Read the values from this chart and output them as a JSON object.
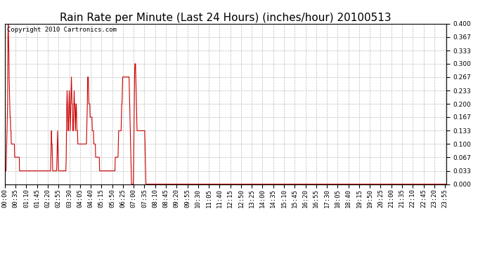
{
  "title": "Rain Rate per Minute (Last 24 Hours) (inches/hour) 20100513",
  "copyright_text": "Copyright 2010 Cartronics.com",
  "line_color": "#cc0000",
  "bg_color": "#ffffff",
  "grid_color": "#bbbbbb",
  "ylim": [
    0.0,
    0.4
  ],
  "yticks": [
    0.0,
    0.033,
    0.067,
    0.1,
    0.133,
    0.167,
    0.2,
    0.233,
    0.267,
    0.3,
    0.333,
    0.367,
    0.4
  ],
  "title_fontsize": 11,
  "tick_fontsize": 6.5,
  "minutes_per_day": 1440,
  "tick_interval": 35,
  "data_sparse": [
    [
      0,
      0.033
    ],
    [
      1,
      0.033
    ],
    [
      2,
      0.033
    ],
    [
      3,
      0.033
    ],
    [
      4,
      0.033
    ],
    [
      5,
      0.067
    ],
    [
      6,
      0.1
    ],
    [
      7,
      0.133
    ],
    [
      8,
      0.167
    ],
    [
      9,
      0.2
    ],
    [
      10,
      0.367
    ],
    [
      11,
      0.4
    ],
    [
      12,
      0.367
    ],
    [
      13,
      0.333
    ],
    [
      14,
      0.267
    ],
    [
      15,
      0.233
    ],
    [
      16,
      0.2
    ],
    [
      17,
      0.167
    ],
    [
      18,
      0.167
    ],
    [
      19,
      0.133
    ],
    [
      20,
      0.133
    ],
    [
      21,
      0.1
    ],
    [
      22,
      0.1
    ],
    [
      23,
      0.1
    ],
    [
      24,
      0.1
    ],
    [
      25,
      0.1
    ],
    [
      26,
      0.1
    ],
    [
      27,
      0.1
    ],
    [
      28,
      0.1
    ],
    [
      29,
      0.1
    ],
    [
      30,
      0.1
    ],
    [
      31,
      0.1
    ],
    [
      32,
      0.067
    ],
    [
      33,
      0.067
    ],
    [
      34,
      0.067
    ],
    [
      35,
      0.067
    ],
    [
      36,
      0.067
    ],
    [
      37,
      0.067
    ],
    [
      38,
      0.067
    ],
    [
      39,
      0.067
    ],
    [
      40,
      0.067
    ],
    [
      41,
      0.067
    ],
    [
      42,
      0.067
    ],
    [
      43,
      0.067
    ],
    [
      44,
      0.067
    ],
    [
      45,
      0.067
    ],
    [
      46,
      0.067
    ],
    [
      47,
      0.067
    ],
    [
      48,
      0.033
    ],
    [
      49,
      0.033
    ],
    [
      50,
      0.033
    ],
    [
      51,
      0.033
    ],
    [
      52,
      0.033
    ],
    [
      53,
      0.033
    ],
    [
      54,
      0.033
    ],
    [
      55,
      0.033
    ],
    [
      56,
      0.033
    ],
    [
      57,
      0.033
    ],
    [
      58,
      0.033
    ],
    [
      59,
      0.033
    ],
    [
      60,
      0.033
    ],
    [
      61,
      0.033
    ],
    [
      62,
      0.033
    ],
    [
      63,
      0.033
    ],
    [
      64,
      0.033
    ],
    [
      65,
      0.033
    ],
    [
      66,
      0.033
    ],
    [
      67,
      0.033
    ],
    [
      68,
      0.033
    ],
    [
      69,
      0.033
    ],
    [
      70,
      0.033
    ],
    [
      71,
      0.033
    ],
    [
      72,
      0.033
    ],
    [
      73,
      0.033
    ],
    [
      74,
      0.033
    ],
    [
      75,
      0.033
    ],
    [
      76,
      0.033
    ],
    [
      77,
      0.033
    ],
    [
      78,
      0.033
    ],
    [
      79,
      0.033
    ],
    [
      80,
      0.033
    ],
    [
      81,
      0.033
    ],
    [
      82,
      0.033
    ],
    [
      83,
      0.033
    ],
    [
      84,
      0.033
    ],
    [
      85,
      0.033
    ],
    [
      86,
      0.033
    ],
    [
      87,
      0.033
    ],
    [
      88,
      0.033
    ],
    [
      89,
      0.033
    ],
    [
      90,
      0.033
    ],
    [
      91,
      0.033
    ],
    [
      92,
      0.033
    ],
    [
      93,
      0.033
    ],
    [
      94,
      0.033
    ],
    [
      95,
      0.033
    ],
    [
      96,
      0.033
    ],
    [
      97,
      0.033
    ],
    [
      98,
      0.033
    ],
    [
      99,
      0.033
    ],
    [
      100,
      0.033
    ],
    [
      101,
      0.033
    ],
    [
      102,
      0.033
    ],
    [
      103,
      0.033
    ],
    [
      104,
      0.033
    ],
    [
      105,
      0.033
    ],
    [
      106,
      0.033
    ],
    [
      107,
      0.033
    ],
    [
      108,
      0.033
    ],
    [
      109,
      0.033
    ],
    [
      110,
      0.033
    ],
    [
      111,
      0.033
    ],
    [
      112,
      0.033
    ],
    [
      113,
      0.033
    ],
    [
      114,
      0.033
    ],
    [
      115,
      0.033
    ],
    [
      116,
      0.033
    ],
    [
      117,
      0.033
    ],
    [
      118,
      0.033
    ],
    [
      119,
      0.033
    ],
    [
      120,
      0.033
    ],
    [
      121,
      0.033
    ],
    [
      122,
      0.033
    ],
    [
      123,
      0.033
    ],
    [
      124,
      0.033
    ],
    [
      125,
      0.033
    ],
    [
      126,
      0.033
    ],
    [
      127,
      0.033
    ],
    [
      128,
      0.033
    ],
    [
      129,
      0.033
    ],
    [
      130,
      0.033
    ],
    [
      131,
      0.033
    ],
    [
      132,
      0.033
    ],
    [
      133,
      0.033
    ],
    [
      134,
      0.033
    ],
    [
      135,
      0.033
    ],
    [
      136,
      0.033
    ],
    [
      137,
      0.033
    ],
    [
      138,
      0.033
    ],
    [
      139,
      0.033
    ],
    [
      140,
      0.033
    ],
    [
      141,
      0.033
    ],
    [
      142,
      0.033
    ],
    [
      143,
      0.033
    ],
    [
      144,
      0.033
    ],
    [
      145,
      0.033
    ],
    [
      146,
      0.033
    ],
    [
      147,
      0.033
    ],
    [
      148,
      0.033
    ],
    [
      149,
      0.033
    ],
    [
      150,
      0.067
    ],
    [
      151,
      0.1
    ],
    [
      152,
      0.133
    ],
    [
      153,
      0.1
    ],
    [
      154,
      0.1
    ],
    [
      155,
      0.067
    ],
    [
      156,
      0.033
    ],
    [
      157,
      0.033
    ],
    [
      158,
      0.033
    ],
    [
      159,
      0.033
    ],
    [
      160,
      0.033
    ],
    [
      161,
      0.033
    ],
    [
      162,
      0.033
    ],
    [
      163,
      0.033
    ],
    [
      164,
      0.033
    ],
    [
      165,
      0.033
    ],
    [
      166,
      0.033
    ],
    [
      167,
      0.033
    ],
    [
      168,
      0.033
    ],
    [
      169,
      0.033
    ],
    [
      170,
      0.067
    ],
    [
      171,
      0.1
    ],
    [
      172,
      0.133
    ],
    [
      173,
      0.1
    ],
    [
      174,
      0.067
    ],
    [
      175,
      0.033
    ],
    [
      176,
      0.033
    ],
    [
      177,
      0.033
    ],
    [
      178,
      0.033
    ],
    [
      179,
      0.033
    ],
    [
      180,
      0.033
    ],
    [
      181,
      0.033
    ],
    [
      182,
      0.033
    ],
    [
      183,
      0.033
    ],
    [
      184,
      0.033
    ],
    [
      185,
      0.033
    ],
    [
      186,
      0.033
    ],
    [
      187,
      0.033
    ],
    [
      188,
      0.033
    ],
    [
      189,
      0.033
    ],
    [
      190,
      0.033
    ],
    [
      191,
      0.033
    ],
    [
      192,
      0.033
    ],
    [
      193,
      0.033
    ],
    [
      194,
      0.033
    ],
    [
      195,
      0.033
    ],
    [
      196,
      0.033
    ],
    [
      197,
      0.033
    ],
    [
      198,
      0.033
    ],
    [
      199,
      0.033
    ],
    [
      200,
      0.067
    ],
    [
      201,
      0.133
    ],
    [
      202,
      0.2
    ],
    [
      203,
      0.233
    ],
    [
      204,
      0.2
    ],
    [
      205,
      0.167
    ],
    [
      206,
      0.133
    ],
    [
      207,
      0.133
    ],
    [
      208,
      0.167
    ],
    [
      209,
      0.2
    ],
    [
      210,
      0.233
    ],
    [
      211,
      0.2
    ],
    [
      212,
      0.167
    ],
    [
      213,
      0.133
    ],
    [
      214,
      0.167
    ],
    [
      215,
      0.2
    ],
    [
      216,
      0.233
    ],
    [
      217,
      0.267
    ],
    [
      218,
      0.233
    ],
    [
      219,
      0.2
    ],
    [
      220,
      0.2
    ],
    [
      221,
      0.167
    ],
    [
      222,
      0.133
    ],
    [
      223,
      0.133
    ],
    [
      224,
      0.167
    ],
    [
      225,
      0.2
    ],
    [
      226,
      0.233
    ],
    [
      227,
      0.2
    ],
    [
      228,
      0.2
    ],
    [
      229,
      0.167
    ],
    [
      230,
      0.133
    ],
    [
      231,
      0.167
    ],
    [
      232,
      0.2
    ],
    [
      233,
      0.2
    ],
    [
      234,
      0.167
    ],
    [
      235,
      0.133
    ],
    [
      236,
      0.133
    ],
    [
      237,
      0.133
    ],
    [
      238,
      0.1
    ],
    [
      239,
      0.1
    ],
    [
      240,
      0.1
    ],
    [
      241,
      0.1
    ],
    [
      242,
      0.1
    ],
    [
      243,
      0.1
    ],
    [
      244,
      0.1
    ],
    [
      245,
      0.1
    ],
    [
      246,
      0.1
    ],
    [
      247,
      0.1
    ],
    [
      248,
      0.1
    ],
    [
      249,
      0.1
    ],
    [
      250,
      0.1
    ],
    [
      251,
      0.1
    ],
    [
      252,
      0.1
    ],
    [
      253,
      0.1
    ],
    [
      254,
      0.1
    ],
    [
      255,
      0.1
    ],
    [
      256,
      0.1
    ],
    [
      257,
      0.1
    ],
    [
      258,
      0.1
    ],
    [
      259,
      0.1
    ],
    [
      260,
      0.1
    ],
    [
      261,
      0.1
    ],
    [
      262,
      0.1
    ],
    [
      263,
      0.1
    ],
    [
      264,
      0.1
    ],
    [
      265,
      0.1
    ],
    [
      266,
      0.1
    ],
    [
      267,
      0.133
    ],
    [
      268,
      0.167
    ],
    [
      269,
      0.2
    ],
    [
      270,
      0.267
    ],
    [
      271,
      0.267
    ],
    [
      272,
      0.267
    ],
    [
      273,
      0.233
    ],
    [
      274,
      0.2
    ],
    [
      275,
      0.2
    ],
    [
      276,
      0.2
    ],
    [
      277,
      0.2
    ],
    [
      278,
      0.167
    ],
    [
      279,
      0.167
    ],
    [
      280,
      0.167
    ],
    [
      281,
      0.167
    ],
    [
      282,
      0.167
    ],
    [
      283,
      0.167
    ],
    [
      284,
      0.167
    ],
    [
      285,
      0.133
    ],
    [
      286,
      0.133
    ],
    [
      287,
      0.133
    ],
    [
      288,
      0.133
    ],
    [
      289,
      0.133
    ],
    [
      290,
      0.1
    ],
    [
      291,
      0.1
    ],
    [
      292,
      0.1
    ],
    [
      293,
      0.1
    ],
    [
      294,
      0.1
    ],
    [
      295,
      0.1
    ],
    [
      296,
      0.067
    ],
    [
      297,
      0.067
    ],
    [
      298,
      0.067
    ],
    [
      299,
      0.067
    ],
    [
      300,
      0.067
    ],
    [
      301,
      0.067
    ],
    [
      302,
      0.067
    ],
    [
      303,
      0.067
    ],
    [
      304,
      0.067
    ],
    [
      305,
      0.067
    ],
    [
      306,
      0.067
    ],
    [
      307,
      0.067
    ],
    [
      308,
      0.067
    ],
    [
      309,
      0.033
    ],
    [
      310,
      0.033
    ],
    [
      311,
      0.033
    ],
    [
      312,
      0.033
    ],
    [
      313,
      0.033
    ],
    [
      314,
      0.033
    ],
    [
      315,
      0.033
    ],
    [
      316,
      0.033
    ],
    [
      317,
      0.033
    ],
    [
      318,
      0.033
    ],
    [
      319,
      0.033
    ],
    [
      320,
      0.033
    ],
    [
      321,
      0.033
    ],
    [
      322,
      0.033
    ],
    [
      323,
      0.033
    ],
    [
      324,
      0.033
    ],
    [
      325,
      0.033
    ],
    [
      326,
      0.033
    ],
    [
      327,
      0.033
    ],
    [
      328,
      0.033
    ],
    [
      329,
      0.033
    ],
    [
      330,
      0.033
    ],
    [
      331,
      0.033
    ],
    [
      332,
      0.033
    ],
    [
      333,
      0.033
    ],
    [
      334,
      0.033
    ],
    [
      335,
      0.033
    ],
    [
      336,
      0.033
    ],
    [
      337,
      0.033
    ],
    [
      338,
      0.033
    ],
    [
      339,
      0.033
    ],
    [
      340,
      0.033
    ],
    [
      341,
      0.033
    ],
    [
      342,
      0.033
    ],
    [
      343,
      0.033
    ],
    [
      344,
      0.033
    ],
    [
      345,
      0.033
    ],
    [
      346,
      0.033
    ],
    [
      347,
      0.033
    ],
    [
      348,
      0.033
    ],
    [
      349,
      0.033
    ],
    [
      350,
      0.033
    ],
    [
      351,
      0.033
    ],
    [
      352,
      0.033
    ],
    [
      353,
      0.033
    ],
    [
      354,
      0.033
    ],
    [
      355,
      0.033
    ],
    [
      356,
      0.033
    ],
    [
      357,
      0.033
    ],
    [
      358,
      0.033
    ],
    [
      359,
      0.033
    ],
    [
      360,
      0.067
    ],
    [
      361,
      0.067
    ],
    [
      362,
      0.067
    ],
    [
      363,
      0.067
    ],
    [
      364,
      0.067
    ],
    [
      365,
      0.067
    ],
    [
      366,
      0.067
    ],
    [
      367,
      0.067
    ],
    [
      368,
      0.067
    ],
    [
      369,
      0.067
    ],
    [
      370,
      0.1
    ],
    [
      371,
      0.133
    ],
    [
      372,
      0.133
    ],
    [
      373,
      0.133
    ],
    [
      374,
      0.133
    ],
    [
      375,
      0.133
    ],
    [
      376,
      0.133
    ],
    [
      377,
      0.133
    ],
    [
      378,
      0.133
    ],
    [
      379,
      0.133
    ],
    [
      380,
      0.167
    ],
    [
      381,
      0.2
    ],
    [
      382,
      0.2
    ],
    [
      383,
      0.233
    ],
    [
      384,
      0.267
    ],
    [
      385,
      0.267
    ],
    [
      386,
      0.267
    ],
    [
      387,
      0.267
    ],
    [
      388,
      0.267
    ],
    [
      389,
      0.267
    ],
    [
      390,
      0.267
    ],
    [
      391,
      0.267
    ],
    [
      392,
      0.267
    ],
    [
      393,
      0.267
    ],
    [
      394,
      0.267
    ],
    [
      395,
      0.267
    ],
    [
      396,
      0.267
    ],
    [
      397,
      0.267
    ],
    [
      398,
      0.267
    ],
    [
      399,
      0.267
    ],
    [
      400,
      0.267
    ],
    [
      401,
      0.267
    ],
    [
      402,
      0.267
    ],
    [
      403,
      0.267
    ],
    [
      404,
      0.267
    ],
    [
      405,
      0.267
    ],
    [
      406,
      0.233
    ],
    [
      407,
      0.2
    ],
    [
      408,
      0.167
    ],
    [
      409,
      0.133
    ],
    [
      410,
      0.1
    ],
    [
      411,
      0.067
    ],
    [
      412,
      0.033
    ],
    [
      413,
      0.0
    ],
    [
      414,
      0.0
    ],
    [
      415,
      0.0
    ],
    [
      416,
      0.0
    ],
    [
      417,
      0.0
    ],
    [
      418,
      0.0
    ],
    [
      419,
      0.0
    ],
    [
      420,
      0.067
    ],
    [
      421,
      0.133
    ],
    [
      422,
      0.2
    ],
    [
      423,
      0.267
    ],
    [
      424,
      0.3
    ],
    [
      425,
      0.3
    ],
    [
      426,
      0.3
    ],
    [
      427,
      0.267
    ],
    [
      428,
      0.233
    ],
    [
      429,
      0.2
    ],
    [
      430,
      0.167
    ],
    [
      431,
      0.133
    ],
    [
      432,
      0.133
    ],
    [
      433,
      0.133
    ],
    [
      434,
      0.133
    ],
    [
      435,
      0.133
    ],
    [
      436,
      0.133
    ],
    [
      437,
      0.133
    ],
    [
      438,
      0.133
    ],
    [
      439,
      0.133
    ],
    [
      440,
      0.133
    ],
    [
      441,
      0.133
    ],
    [
      442,
      0.133
    ],
    [
      443,
      0.133
    ],
    [
      444,
      0.133
    ],
    [
      445,
      0.133
    ],
    [
      446,
      0.133
    ],
    [
      447,
      0.133
    ],
    [
      448,
      0.133
    ],
    [
      449,
      0.133
    ],
    [
      450,
      0.133
    ],
    [
      451,
      0.133
    ],
    [
      452,
      0.133
    ],
    [
      453,
      0.133
    ],
    [
      454,
      0.133
    ],
    [
      455,
      0.133
    ],
    [
      456,
      0.133
    ],
    [
      457,
      0.1
    ],
    [
      458,
      0.067
    ],
    [
      459,
      0.033
    ],
    [
      460,
      0.0
    ]
  ],
  "zero_from": 460
}
